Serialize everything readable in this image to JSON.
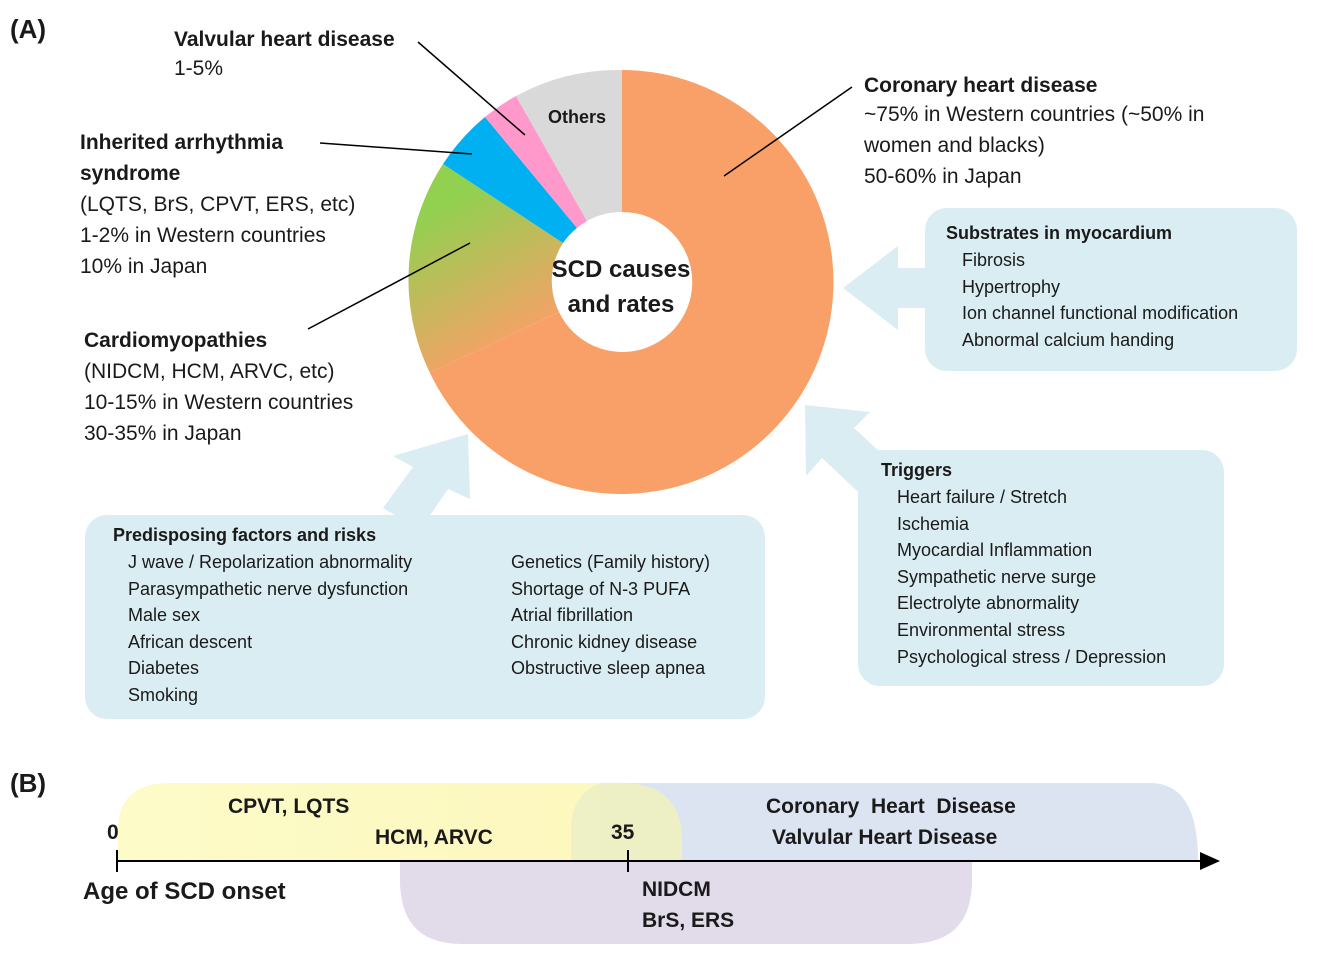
{
  "panel_a": {
    "label": "(A)",
    "center_title": [
      "SCD causes",
      "and rates"
    ],
    "donut": {
      "segments": [
        {
          "name": "Coronary heart disease",
          "color": "#f9a068"
        },
        {
          "name": "Cardiomyopathies",
          "color": "#92d050"
        },
        {
          "name": "Inherited arrhythmia syndrome",
          "color": "#00b0f0"
        },
        {
          "name": "Valvular heart disease",
          "color": "#ff99cc"
        },
        {
          "name": "Others",
          "color": "#d9d9d9"
        }
      ],
      "others_label": "Others"
    },
    "causes": {
      "valvular": {
        "title": "Valvular heart disease",
        "lines": [
          "1-5%"
        ]
      },
      "inherited": {
        "title": [
          "Inherited arrhythmia",
          "syndrome"
        ],
        "lines": [
          "(LQTS, BrS, CPVT, ERS, etc)",
          "1-2% in Western countries",
          "10% in Japan"
        ]
      },
      "cardiomyopathies": {
        "title": "Cardiomyopathies",
        "lines": [
          "(NIDCM, HCM, ARVC, etc)",
          "10-15% in Western countries",
          "30-35% in Japan"
        ]
      },
      "coronary": {
        "title": "Coronary heart disease",
        "lines": [
          "~75% in Western countries (~50% in",
          "women and blacks)",
          "50-60% in Japan"
        ]
      }
    },
    "substrates": {
      "title": "Substrates in myocardium",
      "items": [
        "Fibrosis",
        "Hypertrophy",
        "Ion channel functional modification",
        "Abnormal calcium handing"
      ]
    },
    "triggers": {
      "title": "Triggers",
      "items": [
        "Heart failure / Stretch",
        "Ischemia",
        "Myocardial Inflammation",
        "Sympathetic nerve surge",
        "Electrolyte abnormality",
        "Environmental stress",
        "Psychological stress / Depression"
      ]
    },
    "predisposing": {
      "title": "Predisposing factors and risks",
      "col1": [
        "J wave / Repolarization abnormality",
        "Parasympathetic nerve dysfunction",
        "Male sex",
        "African descent",
        "Diabetes",
        "Smoking"
      ],
      "col2": [
        "Genetics (Family history)",
        "Shortage of N-3 PUFA",
        "Atrial fibrillation",
        "Chronic kidney disease",
        "Obstructive sleep apnea"
      ]
    }
  },
  "panel_b": {
    "label": "(B)",
    "axis_title": "Age of SCD onset",
    "tick_0": "0",
    "tick_35": "35",
    "young": [
      "CPVT, LQTS",
      "HCM, ARVC"
    ],
    "older": [
      "Coronary  Heart  Disease",
      "Valvular Heart Disease"
    ],
    "middle": [
      "NIDCM",
      "BrS, ERS"
    ],
    "colors": {
      "young": "#fdfbc4",
      "older": "#dce4f2",
      "middle": "#e2dcea"
    }
  }
}
